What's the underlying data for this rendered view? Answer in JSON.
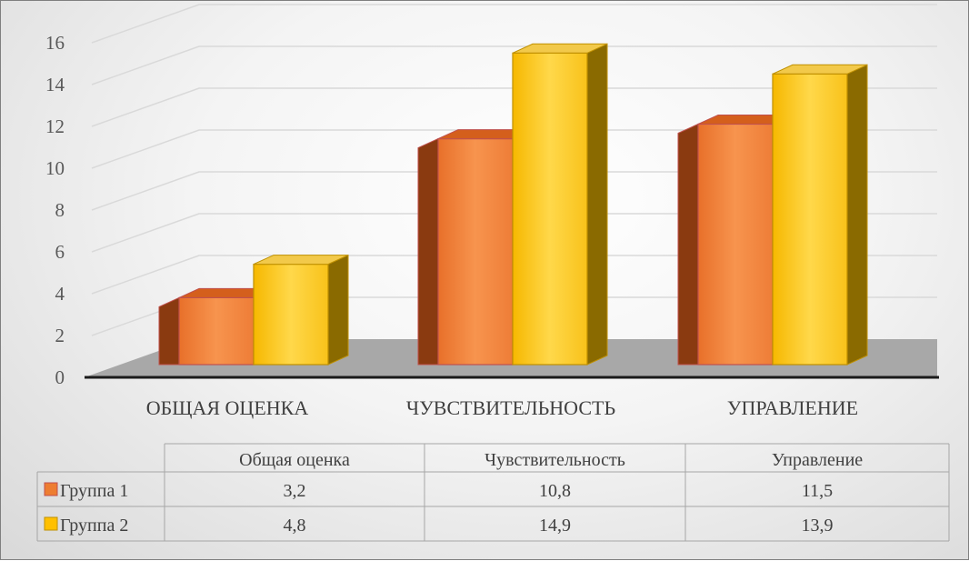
{
  "chart_data": {
    "type": "bar",
    "categories": [
      "ОБЩАЯ ОЦЕНКА",
      "ЧУВСТВИТЕЛЬНОСТЬ",
      "УПРАВЛЕНИЕ"
    ],
    "table_headers": [
      "Общая оценка",
      "Чувствительность",
      "Управление"
    ],
    "series": [
      {
        "name": "Группа 1",
        "values": [
          3.2,
          10.8,
          11.5
        ],
        "labels": [
          "3,2",
          "10,8",
          "11,5"
        ],
        "color": "#ed7d31"
      },
      {
        "name": "Группа 2",
        "values": [
          4.8,
          14.9,
          13.9
        ],
        "labels": [
          "4,8",
          "14,9",
          "13,9"
        ],
        "color": "#ffc000"
      }
    ],
    "yticks": [
      "0",
      "2",
      "4",
      "6",
      "8",
      "10",
      "12",
      "14",
      "16"
    ],
    "ylim": [
      0,
      16
    ],
    "grid": true,
    "legend": "data-table"
  }
}
